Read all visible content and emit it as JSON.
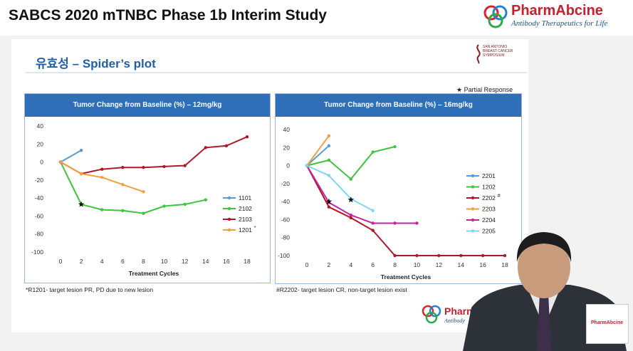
{
  "header": {
    "title": "SABCS 2020 mTNBC Phase 1b Interim Study",
    "brand_name": "PharmAbcine",
    "brand_tagline": "Antibody Therapeutics for Life"
  },
  "slide": {
    "heading": "유효성 – Spider’s plot",
    "sabcs_logo_text": "SAN ANTONIO BREAST CANCER SYMPOSIUM",
    "partial_response_note": "★ Partial Response"
  },
  "bottom_logo": {
    "name": "Pharm",
    "tagline": "Antibody"
  },
  "cam_logo": {
    "name": "PharmAbcine"
  },
  "chart_data": [
    {
      "type": "line",
      "title": "Tumor Change from Baseline (%) – 12mg/kg",
      "xlabel": "Treatment Cycles",
      "ylabel": "",
      "xlim": [
        0,
        18
      ],
      "ylim": [
        -100,
        40
      ],
      "xticks": [
        0,
        2,
        4,
        6,
        8,
        10,
        12,
        14,
        16,
        18
      ],
      "yticks": [
        40,
        20,
        0,
        -20,
        -40,
        -60,
        -80,
        -100
      ],
      "grid": false,
      "legend_position": "right",
      "footnote": "*R1201- target lesion PR, PD due to new lesion",
      "series": [
        {
          "name": "1101",
          "color": "#5b9bd5",
          "x": [
            0,
            2
          ],
          "y": [
            0,
            13
          ]
        },
        {
          "name": "2102",
          "color": "#3ec43e",
          "x": [
            0,
            2,
            4,
            6,
            8,
            10,
            12,
            14
          ],
          "y": [
            0,
            -47,
            -53,
            -54,
            -57,
            -49,
            -47,
            -42
          ]
        },
        {
          "name": "2103",
          "color": "#b0182a",
          "x": [
            0,
            2,
            4,
            6,
            8,
            10,
            12,
            14,
            16,
            18
          ],
          "y": [
            0,
            -13,
            -8,
            -6,
            -6,
            -5,
            -4,
            16,
            18,
            28
          ]
        },
        {
          "name": "1201",
          "legend_mark": "*",
          "color": "#f0a040",
          "x": [
            0,
            2,
            4,
            6,
            8
          ],
          "y": [
            0,
            -13,
            -17,
            -25,
            -33
          ]
        }
      ],
      "partial_response_marks": [
        {
          "x": 2,
          "y": -47
        }
      ]
    },
    {
      "type": "line",
      "title": "Tumor Change from Baseline (%) – 16mg/kg",
      "xlabel": "Treatment Cycles",
      "ylabel": "",
      "xlim": [
        0,
        18
      ],
      "ylim": [
        -100,
        40
      ],
      "xticks": [
        0,
        2,
        4,
        6,
        8,
        10,
        12,
        14,
        16,
        18
      ],
      "yticks": [
        40,
        20,
        0,
        -20,
        -40,
        -60,
        -80,
        -100
      ],
      "grid": false,
      "legend_position": "right",
      "footnote": "#R2202- target lesion CR, non-target lesion exist",
      "series": [
        {
          "name": "2201",
          "color": "#5b9bd5",
          "x": [
            0,
            2
          ],
          "y": [
            0,
            22
          ]
        },
        {
          "name": "1202",
          "color": "#3ec43e",
          "x": [
            0,
            2,
            4,
            6,
            8
          ],
          "y": [
            0,
            6,
            -15,
            15,
            21
          ]
        },
        {
          "name": "2202",
          "legend_mark": "#",
          "color": "#b0182a",
          "x": [
            0,
            2,
            4,
            6,
            8,
            10,
            12,
            14,
            16,
            18
          ],
          "y": [
            0,
            -46,
            -58,
            -72,
            -100,
            -100,
            -100,
            -100,
            -100,
            -100
          ]
        },
        {
          "name": "2203",
          "color": "#f0a040",
          "x": [
            0,
            2
          ],
          "y": [
            0,
            33
          ]
        },
        {
          "name": "2204",
          "color": "#c0269e",
          "x": [
            0,
            2,
            4,
            6,
            8,
            10
          ],
          "y": [
            0,
            -41,
            -55,
            -64,
            -64,
            -64
          ]
        },
        {
          "name": "2205",
          "color": "#7fd6ef",
          "x": [
            0,
            2,
            4,
            6
          ],
          "y": [
            0,
            -11,
            -37,
            -50
          ]
        }
      ],
      "partial_response_marks": [
        {
          "x": 2,
          "y": -40
        },
        {
          "x": 4,
          "y": -38
        }
      ]
    }
  ]
}
